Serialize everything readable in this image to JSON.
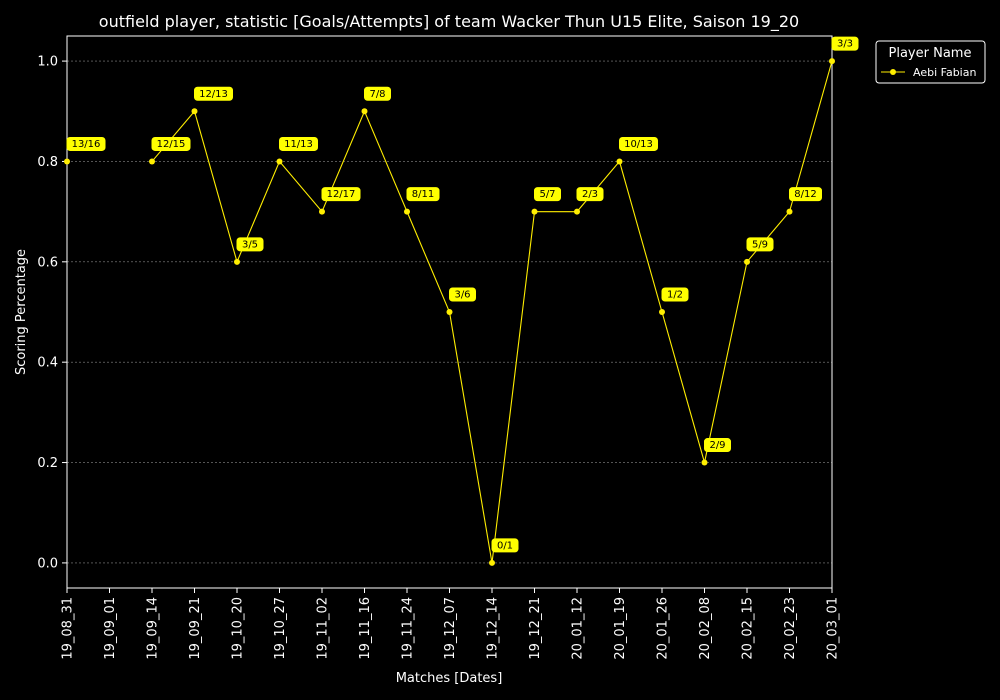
{
  "colors": {
    "background": "#000000",
    "foreground": "#ffffff",
    "series": "#ffee00",
    "label_box": "#ffff00",
    "label_text": "#000000",
    "grid": "#888888"
  },
  "chart_data": {
    "type": "line",
    "title": "outfield player, statistic [Goals/Attempts] of team Wacker Thun U15 Elite, Saison 19_20",
    "xlabel": "Matches [Dates]",
    "ylabel": "Scoring Percentage",
    "ylim": [
      -0.05,
      1.05
    ],
    "yticks": [
      0.0,
      0.2,
      0.4,
      0.6,
      0.8,
      1.0
    ],
    "ytick_labels": [
      "0.0",
      "0.2",
      "0.4",
      "0.6",
      "0.8",
      "1.0"
    ],
    "grid": true,
    "legend": {
      "title": "Player Name",
      "placement": "outside-top-right"
    },
    "categories": [
      "19_08_31",
      "19_09_01",
      "19_09_14",
      "19_09_21",
      "19_10_20",
      "19_10_27",
      "19_11_02",
      "19_11_16",
      "19_11_24",
      "19_12_07",
      "19_12_14",
      "19_12_21",
      "20_01_12",
      "20_01_19",
      "20_01_26",
      "20_02_08",
      "20_02_15",
      "20_02_23",
      "20_03_01"
    ],
    "series": [
      {
        "name": "Aebi Fabian",
        "values": [
          0.8,
          null,
          0.8,
          0.9,
          0.6,
          0.8,
          0.7,
          0.9,
          0.7,
          0.5,
          0.0,
          0.7,
          0.7,
          0.8,
          0.5,
          0.2,
          0.6,
          0.7,
          1.0
        ],
        "labels": [
          "13/16",
          null,
          "12/15",
          "12/13",
          "3/5",
          "11/13",
          "12/17",
          "7/8",
          "8/11",
          "3/6",
          "0/1",
          "5/7",
          "2/3",
          "10/13",
          "1/2",
          "2/9",
          "5/9",
          "8/12",
          "3/3"
        ]
      }
    ]
  }
}
